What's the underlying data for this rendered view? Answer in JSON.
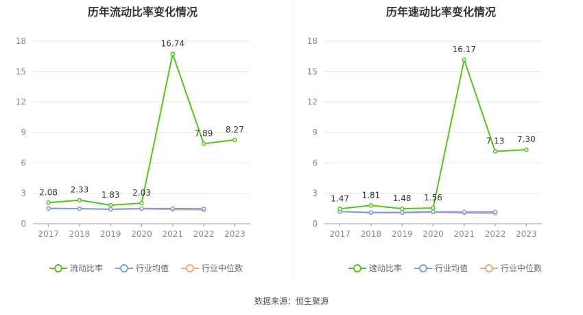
{
  "colors": {
    "current": "#52c41a",
    "avg": "#7b9ee8",
    "median": "#f4a582"
  },
  "legend_labels": {
    "current": "流动比率",
    "quick": "速动比率",
    "avg": "行业均值",
    "median": "行业中位数"
  },
  "source": "数据来源：恒生聚源",
  "chart_data": [
    {
      "type": "line",
      "title": "历年流动比率变化情况",
      "x": [
        "2017",
        "2018",
        "2019",
        "2020",
        "2021",
        "2022",
        "2023"
      ],
      "ylim": [
        0,
        18
      ],
      "yticks": [
        0,
        3,
        6,
        9,
        12,
        15,
        18
      ],
      "grid": true,
      "legend_position": "bottom",
      "series": [
        {
          "name": "流动比率",
          "values": [
            2.08,
            2.33,
            1.83,
            2.03,
            16.74,
            7.89,
            8.27
          ],
          "labels": [
            "2.08",
            "2.33",
            "1.83",
            "2.03",
            "16.74",
            "7.89",
            "8.27"
          ]
        },
        {
          "name": "行业均值",
          "values": [
            1.5,
            1.48,
            1.43,
            1.5,
            1.5,
            1.47,
            null
          ]
        },
        {
          "name": "行业中位数",
          "values": [
            1.52,
            1.5,
            1.4,
            1.47,
            1.4,
            1.36,
            null
          ]
        }
      ]
    },
    {
      "type": "line",
      "title": "历年速动比率变化情况",
      "x": [
        "2017",
        "2018",
        "2019",
        "2020",
        "2021",
        "2022",
        "2023"
      ],
      "ylim": [
        0,
        18
      ],
      "yticks": [
        0,
        3,
        6,
        9,
        12,
        15,
        18
      ],
      "grid": true,
      "legend_position": "bottom",
      "series": [
        {
          "name": "速动比率",
          "values": [
            1.47,
            1.81,
            1.48,
            1.56,
            16.17,
            7.13,
            7.3
          ],
          "labels": [
            "1.47",
            "1.81",
            "1.48",
            "1.56",
            "16.17",
            "7.13",
            "7.30"
          ]
        },
        {
          "name": "行业均值",
          "values": [
            1.2,
            1.12,
            1.12,
            1.18,
            1.16,
            1.16,
            null
          ]
        },
        {
          "name": "行业中位数",
          "values": [
            1.2,
            1.08,
            1.07,
            1.14,
            1.05,
            1.02,
            null
          ]
        }
      ]
    }
  ]
}
